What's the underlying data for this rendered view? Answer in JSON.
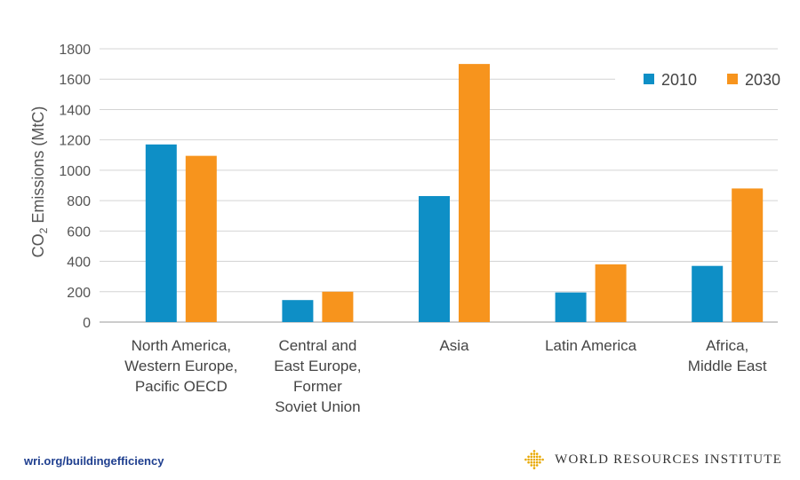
{
  "chart_data": {
    "type": "bar",
    "title": "",
    "ylabel_main": "CO",
    "ylabel_sub": "2",
    "ylabel_rest": " Emissions (MtC)",
    "xlabel": "",
    "ylim": [
      0,
      1800
    ],
    "yticks": [
      0,
      200,
      400,
      600,
      800,
      1000,
      1200,
      1400,
      1600,
      1800
    ],
    "grid": true,
    "legend_position": "top-right",
    "categories": [
      [
        "North America,",
        "Western Europe,",
        "Pacific OECD"
      ],
      [
        "Central and",
        "East Europe,",
        "Former",
        "Soviet Union"
      ],
      [
        "Asia"
      ],
      [
        "Latin America"
      ],
      [
        "Africa,",
        "Middle East"
      ]
    ],
    "series": [
      {
        "name": "2010",
        "color": "#0e8fc6",
        "values": [
          1170,
          145,
          830,
          195,
          370
        ]
      },
      {
        "name": "2030",
        "color": "#f7941d",
        "values": [
          1095,
          200,
          1700,
          380,
          880
        ]
      }
    ]
  },
  "footer": {
    "url": "wri.org/buildingefficiency",
    "brand": "WORLD RESOURCES INSTITUTE",
    "brand_color": "#e8a800"
  }
}
